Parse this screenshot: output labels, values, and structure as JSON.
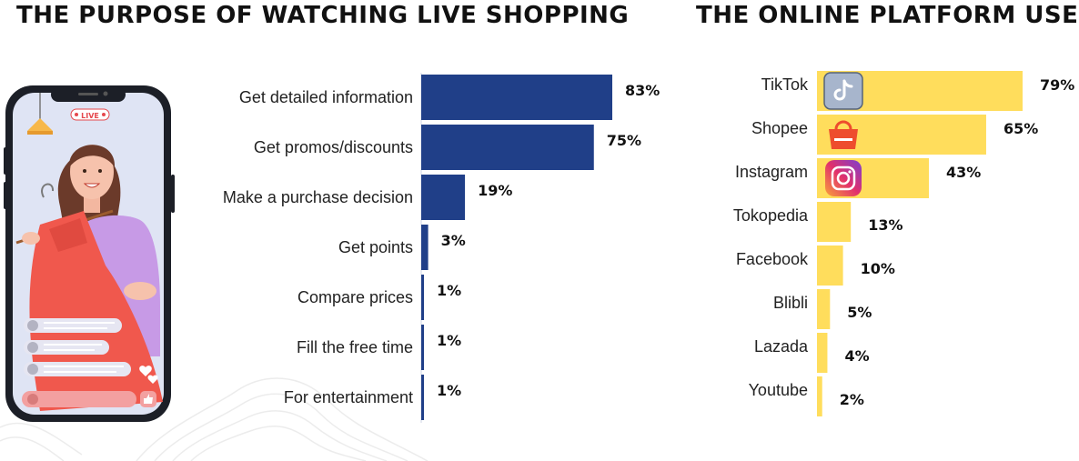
{
  "titles": {
    "left": "THE PURPOSE OF WATCHING LIVE SHOPPING",
    "right": "THE ONLINE PLATFORM USED"
  },
  "phone": {
    "live_badge": "LIVE"
  },
  "colors": {
    "left_bar": "#203f88",
    "right_bar": "#ffdd5c"
  },
  "chart_data": [
    {
      "type": "bar",
      "orientation": "horizontal",
      "title": "THE PURPOSE OF WATCHING LIVE SHOPPING",
      "categories": [
        "Get detailed information",
        "Get promos/discounts",
        "Make a purchase decision",
        "Get points",
        "Compare prices",
        "Fill the free time",
        "For entertainment"
      ],
      "values": [
        83,
        75,
        19,
        3,
        1,
        1,
        1
      ],
      "value_labels": [
        "83%",
        "75%",
        "19%",
        "3%",
        "1%",
        "1%",
        "1%"
      ],
      "unit": "%"
    },
    {
      "type": "bar",
      "orientation": "horizontal",
      "title": "THE ONLINE PLATFORM USED",
      "categories": [
        "TikTok",
        "Shopee",
        "Instagram",
        "Tokopedia",
        "Facebook",
        "Blibli",
        "Lazada",
        "Youtube"
      ],
      "values": [
        79,
        65,
        43,
        13,
        10,
        5,
        4,
        2
      ],
      "value_labels": [
        "79%",
        "65%",
        "43%",
        "13%",
        "10%",
        "5%",
        "4%",
        "2%"
      ],
      "icons": [
        "tiktok-icon",
        "shopee-icon",
        "instagram-icon",
        "",
        "",
        "",
        "",
        ""
      ],
      "unit": "%"
    }
  ]
}
